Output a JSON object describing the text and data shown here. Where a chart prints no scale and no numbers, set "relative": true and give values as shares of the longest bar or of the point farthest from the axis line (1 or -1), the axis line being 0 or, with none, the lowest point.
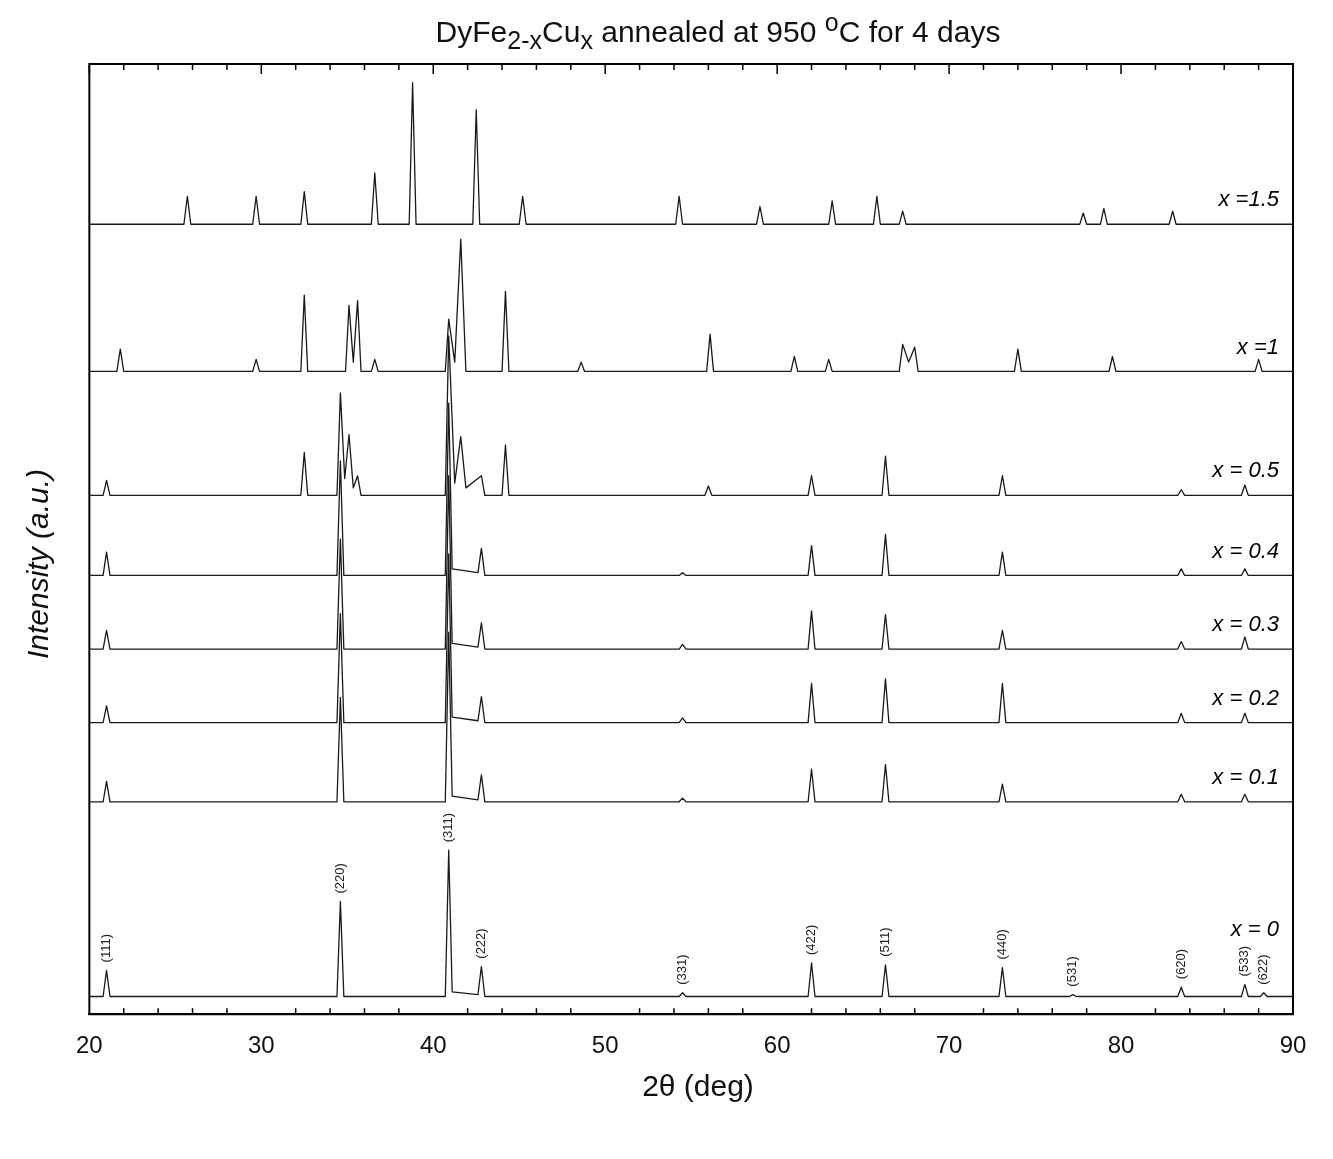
{
  "chart_data": {
    "type": "line",
    "title": "DyFe$_{2-x}$Cu$_{x}$ annealed at 950 $^{o}$C for 4 days",
    "xlabel": "2θ (deg)",
    "ylabel": "Intensity (a.u.)",
    "relative": true,
    "xlim": [
      20,
      90
    ],
    "xticks": [
      20,
      30,
      40,
      50,
      60,
      70,
      80,
      90
    ],
    "grid": false,
    "legend": false,
    "marker": "none",
    "line_style": "solid",
    "annotations": [
      {
        "text": "(111)",
        "x": 21.0,
        "y": 0.047
      },
      {
        "text": "(220)",
        "x": 34.6,
        "y": 0.121
      },
      {
        "text": "(311)",
        "x": 40.9,
        "y": 0.176
      },
      {
        "text": "(222)",
        "x": 42.8,
        "y": 0.051
      },
      {
        "text": "(331)",
        "x": 54.5,
        "y": 0.023
      },
      {
        "text": "(422)",
        "x": 62.0,
        "y": 0.055
      },
      {
        "text": "(511)",
        "x": 66.3,
        "y": 0.053
      },
      {
        "text": "(440)",
        "x": 73.1,
        "y": 0.05
      },
      {
        "text": "(531)",
        "x": 77.2,
        "y": 0.021
      },
      {
        "text": "(620)",
        "x": 83.5,
        "y": 0.029
      },
      {
        "text": "(533)",
        "x": 87.2,
        "y": 0.032
      },
      {
        "text": "(622)",
        "x": 88.3,
        "y": 0.023
      }
    ],
    "series": [
      {
        "name": "x = 0",
        "color": "#1a1a1a",
        "x": [
          20,
          20.8,
          21.0,
          21.2,
          34.4,
          34.6,
          34.8,
          40.7,
          40.9,
          41.1,
          42.6,
          42.8,
          43.0,
          54.3,
          54.5,
          54.7,
          61.8,
          62.0,
          62.2,
          66.1,
          66.3,
          66.5,
          72.9,
          73.1,
          73.3,
          77.0,
          77.2,
          77.4,
          83.3,
          83.5,
          83.7,
          87.0,
          87.2,
          87.4,
          88.1,
          88.3,
          88.5,
          90
        ],
        "values": [
          0.019,
          0.019,
          0.047,
          0.019,
          0.019,
          0.121,
          0.019,
          0.019,
          0.176,
          0.024,
          0.021,
          0.051,
          0.019,
          0.019,
          0.023,
          0.019,
          0.019,
          0.055,
          0.019,
          0.019,
          0.053,
          0.019,
          0.019,
          0.05,
          0.019,
          0.019,
          0.021,
          0.019,
          0.019,
          0.029,
          0.019,
          0.019,
          0.032,
          0.019,
          0.019,
          0.023,
          0.019,
          0.019
        ]
      },
      {
        "name": "x = 0.1",
        "color": "#1a1a1a",
        "x": [
          20,
          20.8,
          21.0,
          21.2,
          34.4,
          34.6,
          34.8,
          40.7,
          40.9,
          41.1,
          42.6,
          42.8,
          43.0,
          54.3,
          54.5,
          54.7,
          61.8,
          62.0,
          62.2,
          66.1,
          66.3,
          66.5,
          72.9,
          73.1,
          73.3,
          83.3,
          83.5,
          83.7,
          87.0,
          87.2,
          87.4,
          90
        ],
        "values": [
          0.228,
          0.228,
          0.25,
          0.228,
          0.228,
          0.34,
          0.228,
          0.228,
          0.41,
          0.234,
          0.23,
          0.257,
          0.228,
          0.228,
          0.232,
          0.228,
          0.228,
          0.263,
          0.228,
          0.228,
          0.268,
          0.228,
          0.228,
          0.247,
          0.228,
          0.228,
          0.236,
          0.228,
          0.228,
          0.236,
          0.228,
          0.228
        ]
      },
      {
        "name": "x = 0.2",
        "color": "#1a1a1a",
        "x": [
          20,
          20.8,
          21.0,
          21.2,
          34.4,
          34.6,
          34.8,
          40.7,
          40.9,
          41.1,
          42.6,
          42.8,
          43.0,
          54.3,
          54.5,
          54.7,
          61.8,
          62.0,
          62.2,
          66.1,
          66.3,
          66.5,
          72.9,
          73.1,
          73.3,
          83.3,
          83.5,
          83.7,
          87.0,
          87.2,
          87.4,
          90
        ],
        "values": [
          0.313,
          0.313,
          0.331,
          0.313,
          0.313,
          0.43,
          0.313,
          0.313,
          0.494,
          0.319,
          0.315,
          0.341,
          0.313,
          0.313,
          0.318,
          0.313,
          0.313,
          0.355,
          0.313,
          0.313,
          0.36,
          0.313,
          0.313,
          0.355,
          0.313,
          0.313,
          0.323,
          0.313,
          0.313,
          0.323,
          0.313,
          0.313
        ]
      },
      {
        "name": "x = 0.3",
        "color": "#1a1a1a",
        "x": [
          20,
          20.8,
          21.0,
          21.2,
          34.4,
          34.6,
          34.8,
          40.7,
          40.9,
          41.1,
          42.6,
          42.8,
          43.0,
          54.3,
          54.5,
          54.7,
          61.8,
          62.0,
          62.2,
          66.1,
          66.3,
          66.5,
          72.9,
          73.1,
          73.3,
          83.3,
          83.5,
          83.7,
          87.0,
          87.2,
          87.4,
          90
        ],
        "values": [
          0.392,
          0.392,
          0.412,
          0.392,
          0.392,
          0.51,
          0.392,
          0.392,
          0.578,
          0.398,
          0.394,
          0.42,
          0.392,
          0.392,
          0.397,
          0.392,
          0.392,
          0.433,
          0.392,
          0.392,
          0.429,
          0.392,
          0.392,
          0.412,
          0.392,
          0.392,
          0.4,
          0.392,
          0.392,
          0.405,
          0.392,
          0.392
        ]
      },
      {
        "name": "x = 0.4",
        "color": "#1a1a1a",
        "x": [
          20,
          20.8,
          21.0,
          21.2,
          34.4,
          34.6,
          34.8,
          40.7,
          40.9,
          41.1,
          42.6,
          42.8,
          43.0,
          54.3,
          54.5,
          54.7,
          61.8,
          62.0,
          62.2,
          66.1,
          66.3,
          66.5,
          72.9,
          73.1,
          73.3,
          83.3,
          83.5,
          83.7,
          87.0,
          87.2,
          87.4,
          90
        ],
        "values": [
          0.471,
          0.471,
          0.496,
          0.471,
          0.471,
          0.594,
          0.471,
          0.471,
          0.656,
          0.478,
          0.474,
          0.5,
          0.471,
          0.471,
          0.474,
          0.471,
          0.471,
          0.503,
          0.471,
          0.471,
          0.515,
          0.471,
          0.471,
          0.496,
          0.471,
          0.471,
          0.478,
          0.471,
          0.471,
          0.478,
          0.471,
          0.471
        ]
      },
      {
        "name": "x = 0.5",
        "color": "#1a1a1a",
        "x": [
          20,
          20.8,
          21.0,
          21.2,
          32.3,
          32.5,
          32.7,
          34.4,
          34.6,
          34.85,
          35.1,
          35.35,
          35.6,
          35.8,
          40.7,
          40.9,
          41.25,
          41.6,
          41.9,
          42.8,
          43.0,
          44.0,
          44.2,
          44.4,
          55.8,
          56.0,
          56.2,
          61.8,
          62.0,
          62.2,
          66.1,
          66.3,
          66.5,
          72.9,
          73.1,
          73.3,
          83.3,
          83.5,
          83.7,
          87.0,
          87.2,
          87.4,
          90
        ],
        "values": [
          0.557,
          0.557,
          0.573,
          0.557,
          0.557,
          0.603,
          0.557,
          0.557,
          0.667,
          0.575,
          0.622,
          0.565,
          0.578,
          0.557,
          0.557,
          0.728,
          0.57,
          0.62,
          0.565,
          0.578,
          0.557,
          0.557,
          0.611,
          0.557,
          0.557,
          0.567,
          0.557,
          0.557,
          0.578,
          0.557,
          0.557,
          0.599,
          0.557,
          0.557,
          0.578,
          0.557,
          0.557,
          0.563,
          0.557,
          0.557,
          0.568,
          0.557,
          0.557
        ]
      },
      {
        "name": "x =1",
        "color": "#1a1a1a",
        "x": [
          20,
          21.6,
          21.8,
          22.0,
          29.5,
          29.7,
          29.9,
          32.3,
          32.5,
          32.7,
          34.9,
          35.1,
          35.35,
          35.6,
          35.8,
          36.4,
          36.6,
          36.8,
          40.7,
          40.9,
          41.25,
          41.6,
          41.9,
          44.0,
          44.2,
          44.4,
          48.4,
          48.6,
          48.8,
          55.9,
          56.1,
          56.3,
          60.8,
          61.0,
          61.2,
          62.8,
          63.0,
          63.2,
          67.1,
          67.3,
          67.65,
          68.0,
          68.2,
          73.8,
          74.0,
          74.2,
          79.3,
          79.5,
          79.7,
          87.8,
          88.0,
          88.2,
          90
        ],
        "values": [
          0.69,
          0.69,
          0.714,
          0.69,
          0.69,
          0.703,
          0.69,
          0.69,
          0.772,
          0.69,
          0.69,
          0.761,
          0.7,
          0.766,
          0.69,
          0.69,
          0.703,
          0.69,
          0.69,
          0.746,
          0.7,
          0.832,
          0.69,
          0.69,
          0.776,
          0.69,
          0.69,
          0.7,
          0.69,
          0.69,
          0.73,
          0.69,
          0.69,
          0.706,
          0.69,
          0.69,
          0.703,
          0.69,
          0.69,
          0.719,
          0.7,
          0.716,
          0.69,
          0.69,
          0.714,
          0.69,
          0.69,
          0.706,
          0.69,
          0.69,
          0.703,
          0.69,
          0.69
        ]
      },
      {
        "name": "x =1.5",
        "color": "#1a1a1a",
        "x": [
          20,
          25.5,
          25.7,
          25.9,
          29.5,
          29.7,
          29.9,
          32.3,
          32.5,
          32.7,
          36.4,
          36.6,
          36.8,
          38.6,
          38.8,
          39.0,
          42.3,
          42.5,
          42.7,
          45.0,
          45.2,
          45.4,
          54.1,
          54.3,
          54.5,
          58.8,
          59.0,
          59.2,
          63.0,
          63.2,
          63.4,
          65.6,
          65.8,
          66.0,
          67.1,
          67.3,
          67.5,
          77.6,
          77.8,
          78.0,
          78.8,
          79.0,
          79.2,
          82.8,
          83.0,
          83.2,
          90
        ],
        "values": [
          0.848,
          0.848,
          0.878,
          0.848,
          0.848,
          0.878,
          0.848,
          0.848,
          0.883,
          0.848,
          0.848,
          0.903,
          0.848,
          0.848,
          1,
          0.848,
          0.848,
          0.971,
          0.848,
          0.848,
          0.878,
          0.848,
          0.848,
          0.878,
          0.848,
          0.848,
          0.867,
          0.848,
          0.848,
          0.873,
          0.848,
          0.848,
          0.878,
          0.848,
          0.848,
          0.862,
          0.848,
          0.848,
          0.86,
          0.848,
          0.848,
          0.865,
          0.848,
          0.848,
          0.862,
          0.848,
          0.848
        ]
      }
    ]
  }
}
